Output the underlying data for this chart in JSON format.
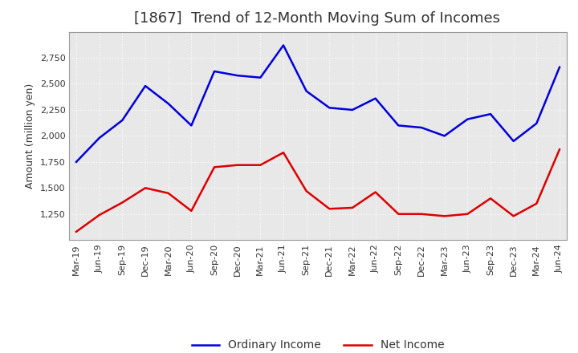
{
  "title": "[1867]  Trend of 12-Month Moving Sum of Incomes",
  "ylabel": "Amount (million yen)",
  "x_labels": [
    "Mar-19",
    "Jun-19",
    "Sep-19",
    "Dec-19",
    "Mar-20",
    "Jun-20",
    "Sep-20",
    "Dec-20",
    "Mar-21",
    "Jun-21",
    "Sep-21",
    "Dec-21",
    "Mar-22",
    "Jun-22",
    "Sep-22",
    "Dec-22",
    "Mar-23",
    "Jun-23",
    "Sep-23",
    "Dec-23",
    "Mar-24",
    "Jun-24"
  ],
  "ordinary_income": [
    1750,
    1980,
    2150,
    2480,
    2310,
    2100,
    2620,
    2580,
    2560,
    2870,
    2430,
    2270,
    2250,
    2360,
    2100,
    2080,
    2000,
    2160,
    2210,
    1950,
    2120,
    2660
  ],
  "net_income": [
    1080,
    1240,
    1360,
    1500,
    1450,
    1280,
    1700,
    1720,
    1720,
    1840,
    1470,
    1300,
    1310,
    1460,
    1250,
    1250,
    1230,
    1250,
    1400,
    1230,
    1350,
    1870
  ],
  "ordinary_color": "#0000dd",
  "net_color": "#dd0000",
  "ylim_min": 1000,
  "ylim_max": 3000,
  "yticks": [
    1250,
    1500,
    1750,
    2000,
    2250,
    2500,
    2750
  ],
  "background_color": "#ffffff",
  "plot_bg_color": "#e8e8e8",
  "grid_color": "#ffffff",
  "title_color": "#333333",
  "title_fontsize": 13,
  "axis_label_fontsize": 9,
  "tick_fontsize": 8,
  "legend_fontsize": 10,
  "line_width": 1.8
}
